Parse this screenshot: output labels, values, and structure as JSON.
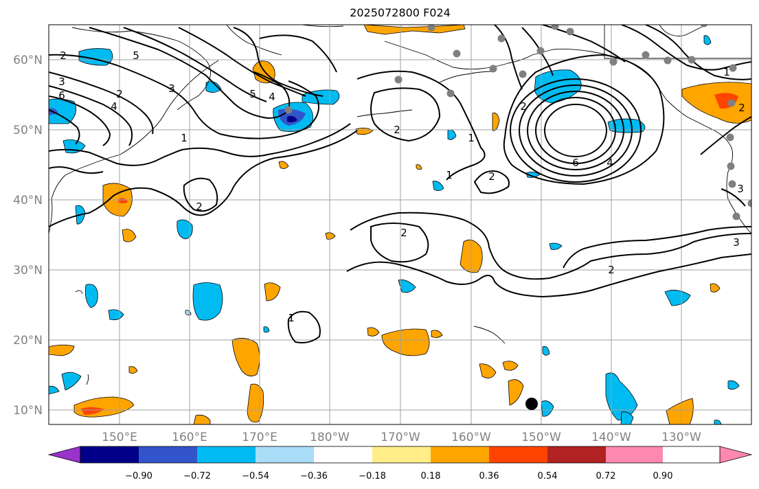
{
  "title": "2025072800 F024",
  "map": {
    "lat_labels": [
      "60°N",
      "50°N",
      "40°N",
      "30°N",
      "20°N",
      "10°N"
    ],
    "lon_labels": [
      "150°E",
      "160°E",
      "170°E",
      "180°W",
      "170°W",
      "160°W",
      "150°W",
      "140°W",
      "130°W"
    ],
    "contour_labels": [
      {
        "text": "2"
      },
      {
        "text": "5"
      },
      {
        "text": "3"
      },
      {
        "text": "6"
      },
      {
        "text": "4"
      },
      {
        "text": "2"
      },
      {
        "text": "3"
      },
      {
        "text": "1"
      },
      {
        "text": "5"
      },
      {
        "text": "4"
      },
      {
        "text": "2"
      },
      {
        "text": "2"
      },
      {
        "text": "1"
      },
      {
        "text": "1"
      },
      {
        "text": "2"
      },
      {
        "text": "6"
      },
      {
        "text": "4"
      },
      {
        "text": "2"
      },
      {
        "text": "2"
      },
      {
        "text": "1"
      },
      {
        "text": "3"
      },
      {
        "text": "1"
      },
      {
        "text": "2"
      },
      {
        "text": "2"
      },
      {
        "text": "3"
      }
    ],
    "marker": "filled-circle"
  },
  "colorbar": {
    "colors": [
      "#9933cc",
      "#000088",
      "#3355cc",
      "#00bbf2",
      "#aaddf8",
      "#ffffff",
      "#ffee88",
      "#ffa500",
      "#ff4400",
      "#b22222",
      "#ff88b0"
    ],
    "tick_labels": [
      "−0.90",
      "−0.72",
      "−0.54",
      "−0.36",
      "−0.18",
      "0.18",
      "0.36",
      "0.54",
      "0.72",
      "0.90"
    ]
  }
}
